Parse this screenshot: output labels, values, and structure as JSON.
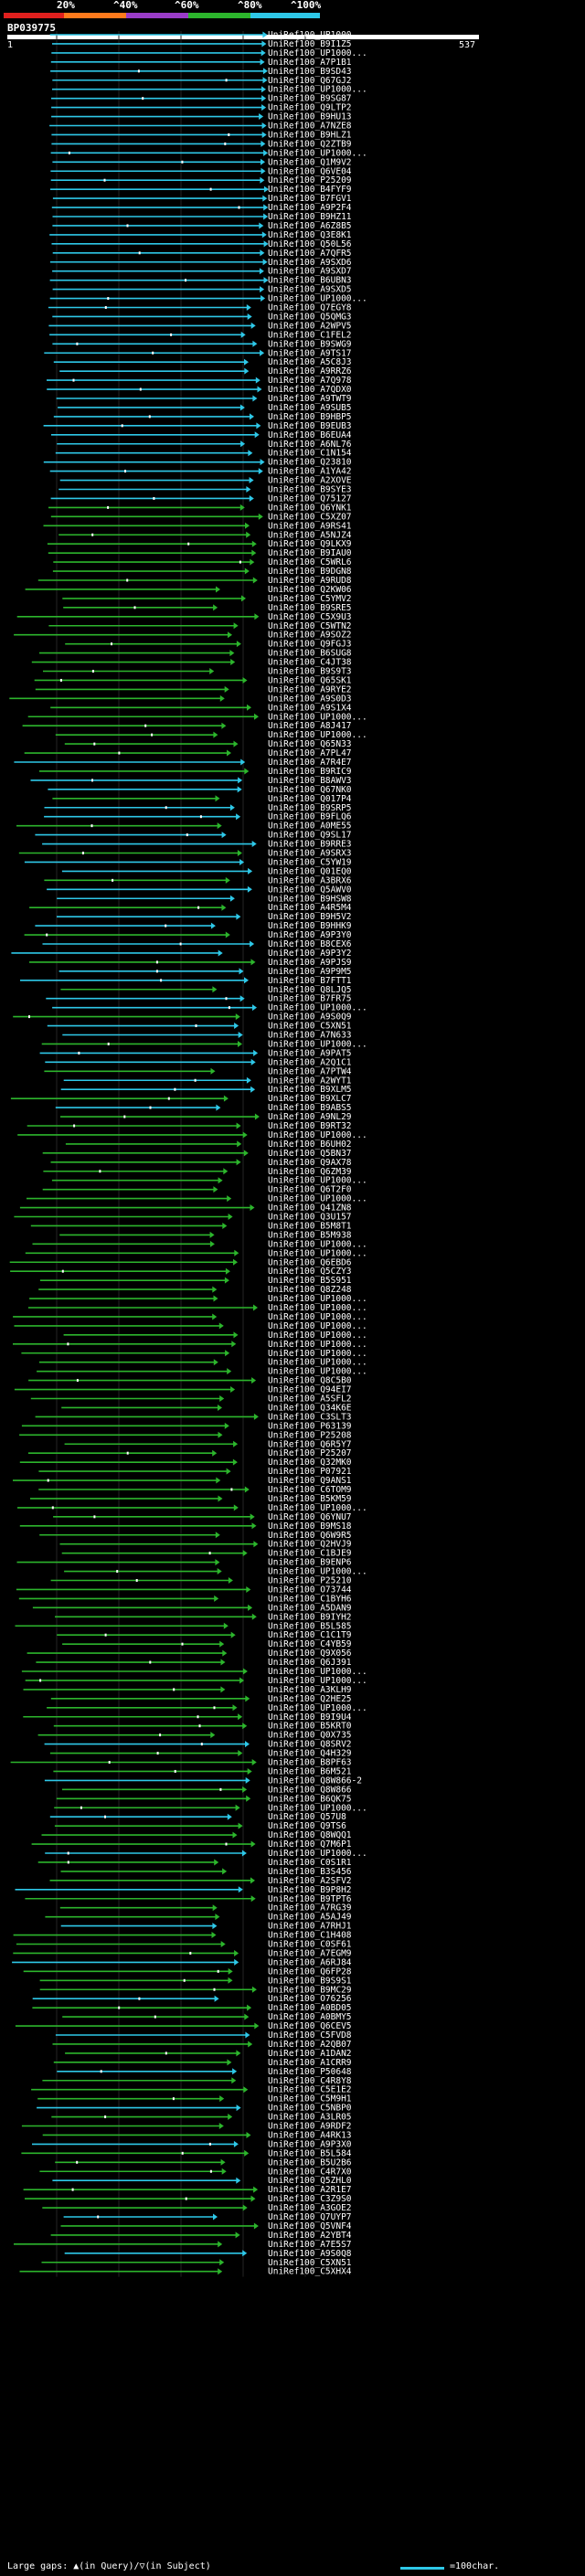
{
  "legend": {
    "segments": [
      {
        "label": "20%",
        "color": "#e0201e"
      },
      {
        "label": "^40%",
        "color": "#ff7a1c"
      },
      {
        "label": "^60%",
        "color": "#9a3cc8"
      },
      {
        "label": "^80%",
        "color": "#2cb52c"
      },
      {
        "label": "^100%",
        "color": "#2ec8e8"
      }
    ]
  },
  "query": {
    "id": "BP039775",
    "start": "1",
    "end": "537"
  },
  "colors": {
    "blue": "#2ec8e8",
    "green": "#2cb52c",
    "teal": "#4aa8b0"
  },
  "footer": {
    "gaps_text": "Large gaps: ▲(in Query)/▽(in Subject)",
    "scale_text": "=100char."
  },
  "hits": [
    "UniRef100_UP1000...",
    "UniRef100_B9I1Z5",
    "UniRef100_UP1000...",
    "UniRef100_A7P1B1",
    "UniRef100_B9SD43",
    "UniRef100_Q67GJ2",
    "UniRef100_UP1000...",
    "UniRef100_B9SG87",
    "UniRef100_Q9LTP2",
    "UniRef100_B9HU13",
    "UniRef100_A7NZE8",
    "UniRef100_B9HLZ1",
    "UniRef100_Q2ZTB9",
    "UniRef100_UP1000...",
    "UniRef100_Q1M9V2",
    "UniRef100_Q6VE04",
    "UniRef100_P25209",
    "UniRef100_B4FYF9",
    "UniRef100_B7FGV1",
    "UniRef100_A9P2F4",
    "UniRef100_B9HZ11",
    "UniRef100_A6Z8B5",
    "UniRef100_Q3E8K1",
    "UniRef100_Q50L56",
    "UniRef100_A7QFR5",
    "UniRef100_A9SXD6",
    "UniRef100_A9SXD7",
    "UniRef100_B6UBN3",
    "UniRef100_A9SXD5",
    "UniRef100_UP1000...",
    "UniRef100_Q7EGY8",
    "UniRef100_Q5QMG3",
    "UniRef100_A2WPV5",
    "UniRef100_C1FEL2",
    "UniRef100_B9SWG9",
    "UniRef100_A9TS17",
    "UniRef100_A5C8J3",
    "UniRef100_A9RRZ6",
    "UniRef100_A7Q978",
    "UniRef100_A7QDX0",
    "UniRef100_A9TWT9",
    "UniRef100_A9SUB5",
    "UniRef100_B9HBP5",
    "UniRef100_B9EUB3",
    "UniRef100_B6EUA4",
    "UniRef100_A6NL76",
    "UniRef100_C1N154",
    "UniRef100_Q23810",
    "UniRef100_A1YA42",
    "UniRef100_A2XOVE",
    "UniRef100_B9SYE3",
    "UniRef100_Q75127",
    "UniRef100_Q6YNK1",
    "UniRef100_C5XZ07",
    "UniRef100_A9RS41",
    "UniRef100_A5NJZ4",
    "UniRef100_Q9LKX9",
    "UniRef100_B9IAU0",
    "UniRef100_C5WRL6",
    "UniRef100_B9DGN8",
    "UniRef100_A9RUD8",
    "UniRef100_Q2KW06",
    "UniRef100_C5YMV2",
    "UniRef100_B9SRE5",
    "UniRef100_C5X9U3",
    "UniRef100_C5WTN2",
    "UniRef100_A9SOZ2",
    "UniRef100_Q9FGJ3",
    "UniRef100_B6SUG8",
    "UniRef100_C4JT38",
    "UniRef100_B9S9T3",
    "UniRef100_Q65SK1",
    "UniRef100_A9RYE2",
    "UniRef100_A9S0D3",
    "UniRef100_A9S1X4",
    "UniRef100_UP1000...",
    "UniRef100_A8J417",
    "UniRef100_UP1000...",
    "UniRef100_Q65N33",
    "UniRef100_A7PL47",
    "UniRef100_A7R4E7",
    "UniRef100_B9RIC9",
    "UniRef100_B8AWV3",
    "UniRef100_Q67NK0",
    "UniRef100_Q017P4",
    "UniRef100_B9SRP5",
    "UniRef100_B9FLQ6",
    "UniRef100_A0ME55",
    "UniRef100_Q9SL17",
    "UniRef100_B9RRE3",
    "UniRef100_A9SRX3",
    "UniRef100_C5YW19",
    "UniRef100_Q01EQ0",
    "UniRef100_A3BRX6",
    "UniRef100_Q5AWV0",
    "UniRef100_B9HSW8",
    "UniRef100_A4R5M4",
    "UniRef100_B9H5V2",
    "UniRef100_B9HHK9",
    "UniRef100_A9P3Y0",
    "UniRef100_B8CEX6",
    "UniRef100_A9P3Y2",
    "UniRef100_A9PJS9",
    "UniRef100_A9P9M5",
    "UniRef100_B7FTT1",
    "UniRef100_Q8LJQ5",
    "UniRef100_B7FR75",
    "UniRef100_UP1000...",
    "UniRef100_A9S0Q9",
    "UniRef100_C5XN51",
    "UniRef100_A7N633",
    "UniRef100_UP1000...",
    "UniRef100_A9PAT5",
    "UniRef100_A2Q1C1",
    "UniRef100_A7PTW4",
    "UniRef100_A2WYT1",
    "UniRef100_B9XLM5",
    "UniRef100_B9XLC7",
    "UniRef100_B9ABS5",
    "UniRef100_A9NL29",
    "UniRef100_B9RT32",
    "UniRef100_UP1000...",
    "UniRef100_B6UH02",
    "UniRef100_Q5BN37",
    "UniRef100_Q9AX78",
    "UniRef100_Q6ZM39",
    "UniRef100_UP1000...",
    "UniRef100_Q6T2F0",
    "UniRef100_UP1000...",
    "UniRef100_Q41ZN8",
    "UniRef100_Q3U157",
    "UniRef100_B5M8T1",
    "UniRef100_B5M938",
    "UniRef100_UP1000...",
    "UniRef100_UP1000...",
    "UniRef100_Q6EBD6",
    "UniRef100_Q5CZY3",
    "UniRef100_B5S951",
    "UniRef100_Q8Z248",
    "UniRef100_UP1000...",
    "UniRef100_UP1000...",
    "UniRef100_UP1000...",
    "UniRef100_UP1000...",
    "UniRef100_UP1000...",
    "UniRef100_UP1000...",
    "UniRef100_UP1000...",
    "UniRef100_UP1000...",
    "UniRef100_UP1000...",
    "UniRef100_Q8C5B0",
    "UniRef100_Q94EI7",
    "UniRef100_A5SFL2",
    "UniRef100_Q34K6E",
    "UniRef100_C3SLT3",
    "UniRef100_P63139",
    "UniRef100_P25208",
    "UniRef100_Q6R5Y7",
    "UniRef100_P25207",
    "UniRef100_Q32MK0",
    "UniRef100_P07921",
    "UniRef100_Q9ANS1",
    "UniRef100_C6TOM9",
    "UniRef100_B5KM59",
    "UniRef100_UP1000...",
    "UniRef100_Q6YNU7",
    "UniRef100_B9MS18",
    "UniRef100_Q6W9R5",
    "UniRef100_Q2HVJ9",
    "UniRef100_C1BJE9",
    "UniRef100_B9ENP6",
    "UniRef100_UP1000...",
    "UniRef100_P25210",
    "UniRef100_O73744",
    "UniRef100_C1BYH6",
    "UniRef100_A5DAN9",
    "UniRef100_B9IYH2",
    "UniRef100_B5L585",
    "UniRef100_C1C1T9",
    "UniRef100_C4YB59",
    "UniRef100_Q9X056",
    "UniRef100_Q6J391",
    "UniRef100_UP1000...",
    "UniRef100_UP1000...",
    "UniRef100_A3KLH9",
    "UniRef100_Q2HE25",
    "UniRef100_UP1000...",
    "UniRef100_B9I9U4",
    "UniRef100_B5KRT0",
    "UniRef100_Q0X735",
    "UniRef100_Q8SRV2",
    "UniRef100_Q4H329",
    "UniRef100_B8PF63",
    "UniRef100_B6M521",
    "UniRef100_Q8W866-2",
    "UniRef100_Q8W866",
    "UniRef100_B6QK75",
    "UniRef100_UP1000...",
    "UniRef100_Q57U8",
    "UniRef100_Q9TS6",
    "UniRef100_Q8WQQ1",
    "UniRef100_Q7M6P1",
    "UniRef100_UP1000...",
    "UniRef100_C0S1R1",
    "UniRef100_B3S456",
    "UniRef100_A2SFV2",
    "UniRef100_B9P8H2",
    "UniRef100_B9TPT6",
    "UniRef100_A7RG39",
    "UniRef100_A5AJ49",
    "UniRef100_A7RHJ1",
    "UniRef100_C1H408",
    "UniRef100_C0SF61",
    "UniRef100_A7EGM9",
    "UniRef100_A6RJ84",
    "UniRef100_Q6FP28",
    "UniRef100_B9S9S1",
    "UniRef100_B9MC29",
    "UniRef100_O76256",
    "UniRef100_A0BD05",
    "UniRef100_A0BMY5",
    "UniRef100_Q6CEV5",
    "UniRef100_C5FVD8",
    "UniRef100_A2QB07",
    "UniRef100_A1DAN2",
    "UniRef100_A1CRR9",
    "UniRef100_P50648",
    "UniRef100_C4R8Y8",
    "UniRef100_C5E1E2",
    "UniRef100_C5M9H1",
    "UniRef100_C5NBP0",
    "UniRef100_A3LR05",
    "UniRef100_A9RDF2",
    "UniRef100_A4RK13",
    "UniRef100_A9P3X0",
    "UniRef100_B5L584",
    "UniRef100_B5U2B6",
    "UniRef100_C4R7X0",
    "UniRef100_Q5ZHL0",
    "UniRef100_A2R1E7",
    "UniRef100_C3Z9S0",
    "UniRef100_A3GOE2",
    "UniRef100_Q7UYP7",
    "UniRef100_Q5VNF4",
    "UniRef100_A2YBT4",
    "UniRef100_A7E5S7",
    "UniRef100_A9S0Q8",
    "UniRef100_C5XN51",
    "UniRef100_C5XHX4"
  ]
}
